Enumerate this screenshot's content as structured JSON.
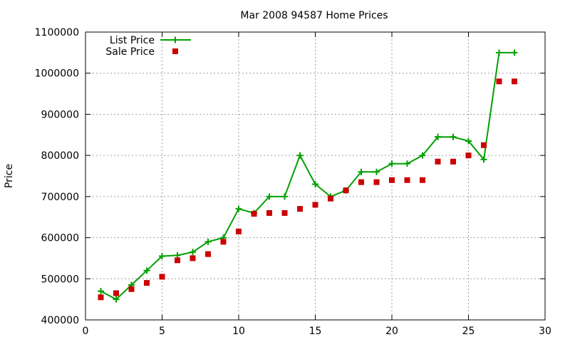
{
  "chart_data": {
    "type": "line",
    "title": "Mar 2008 94587 Home Prices",
    "xlabel": "",
    "ylabel": "Price",
    "xlim": [
      0,
      30
    ],
    "ylim": [
      400000,
      1100000
    ],
    "x_ticks": [
      "0",
      "5",
      "10",
      "15",
      "20",
      "25",
      "30"
    ],
    "y_ticks": [
      "400000",
      "500000",
      "600000",
      "700000",
      "800000",
      "900000",
      "1000000",
      "1100000"
    ],
    "grid": true,
    "legend_position": "top-left",
    "series": [
      {
        "name": "List Price",
        "style": "line with plus markers",
        "color": "#00a000",
        "x": [
          1,
          2,
          3,
          4,
          5,
          6,
          7,
          8,
          9,
          10,
          11,
          12,
          13,
          14,
          15,
          16,
          17,
          18,
          19,
          20,
          21,
          22,
          23,
          24,
          25,
          26,
          27,
          28
        ],
        "y": [
          470000,
          450000,
          485000,
          520000,
          555000,
          557000,
          565000,
          590000,
          600000,
          670000,
          660000,
          700000,
          700000,
          800000,
          730000,
          700000,
          715000,
          760000,
          760000,
          780000,
          780000,
          800000,
          845000,
          845000,
          835000,
          790000,
          1050000,
          1050000
        ]
      },
      {
        "name": "Sale Price",
        "style": "square markers",
        "color": "#cc0000",
        "x": [
          1,
          2,
          3,
          4,
          5,
          6,
          7,
          8,
          9,
          10,
          11,
          12,
          13,
          14,
          15,
          16,
          17,
          18,
          19,
          20,
          21,
          22,
          23,
          24,
          25,
          26,
          27,
          28
        ],
        "y": [
          455000,
          465000,
          475000,
          490000,
          505000,
          545000,
          550000,
          560000,
          590000,
          615000,
          658000,
          660000,
          660000,
          670000,
          680000,
          695000,
          715000,
          735000,
          735000,
          740000,
          740000,
          740000,
          785000,
          785000,
          800000,
          825000,
          980000,
          980000
        ]
      }
    ]
  }
}
